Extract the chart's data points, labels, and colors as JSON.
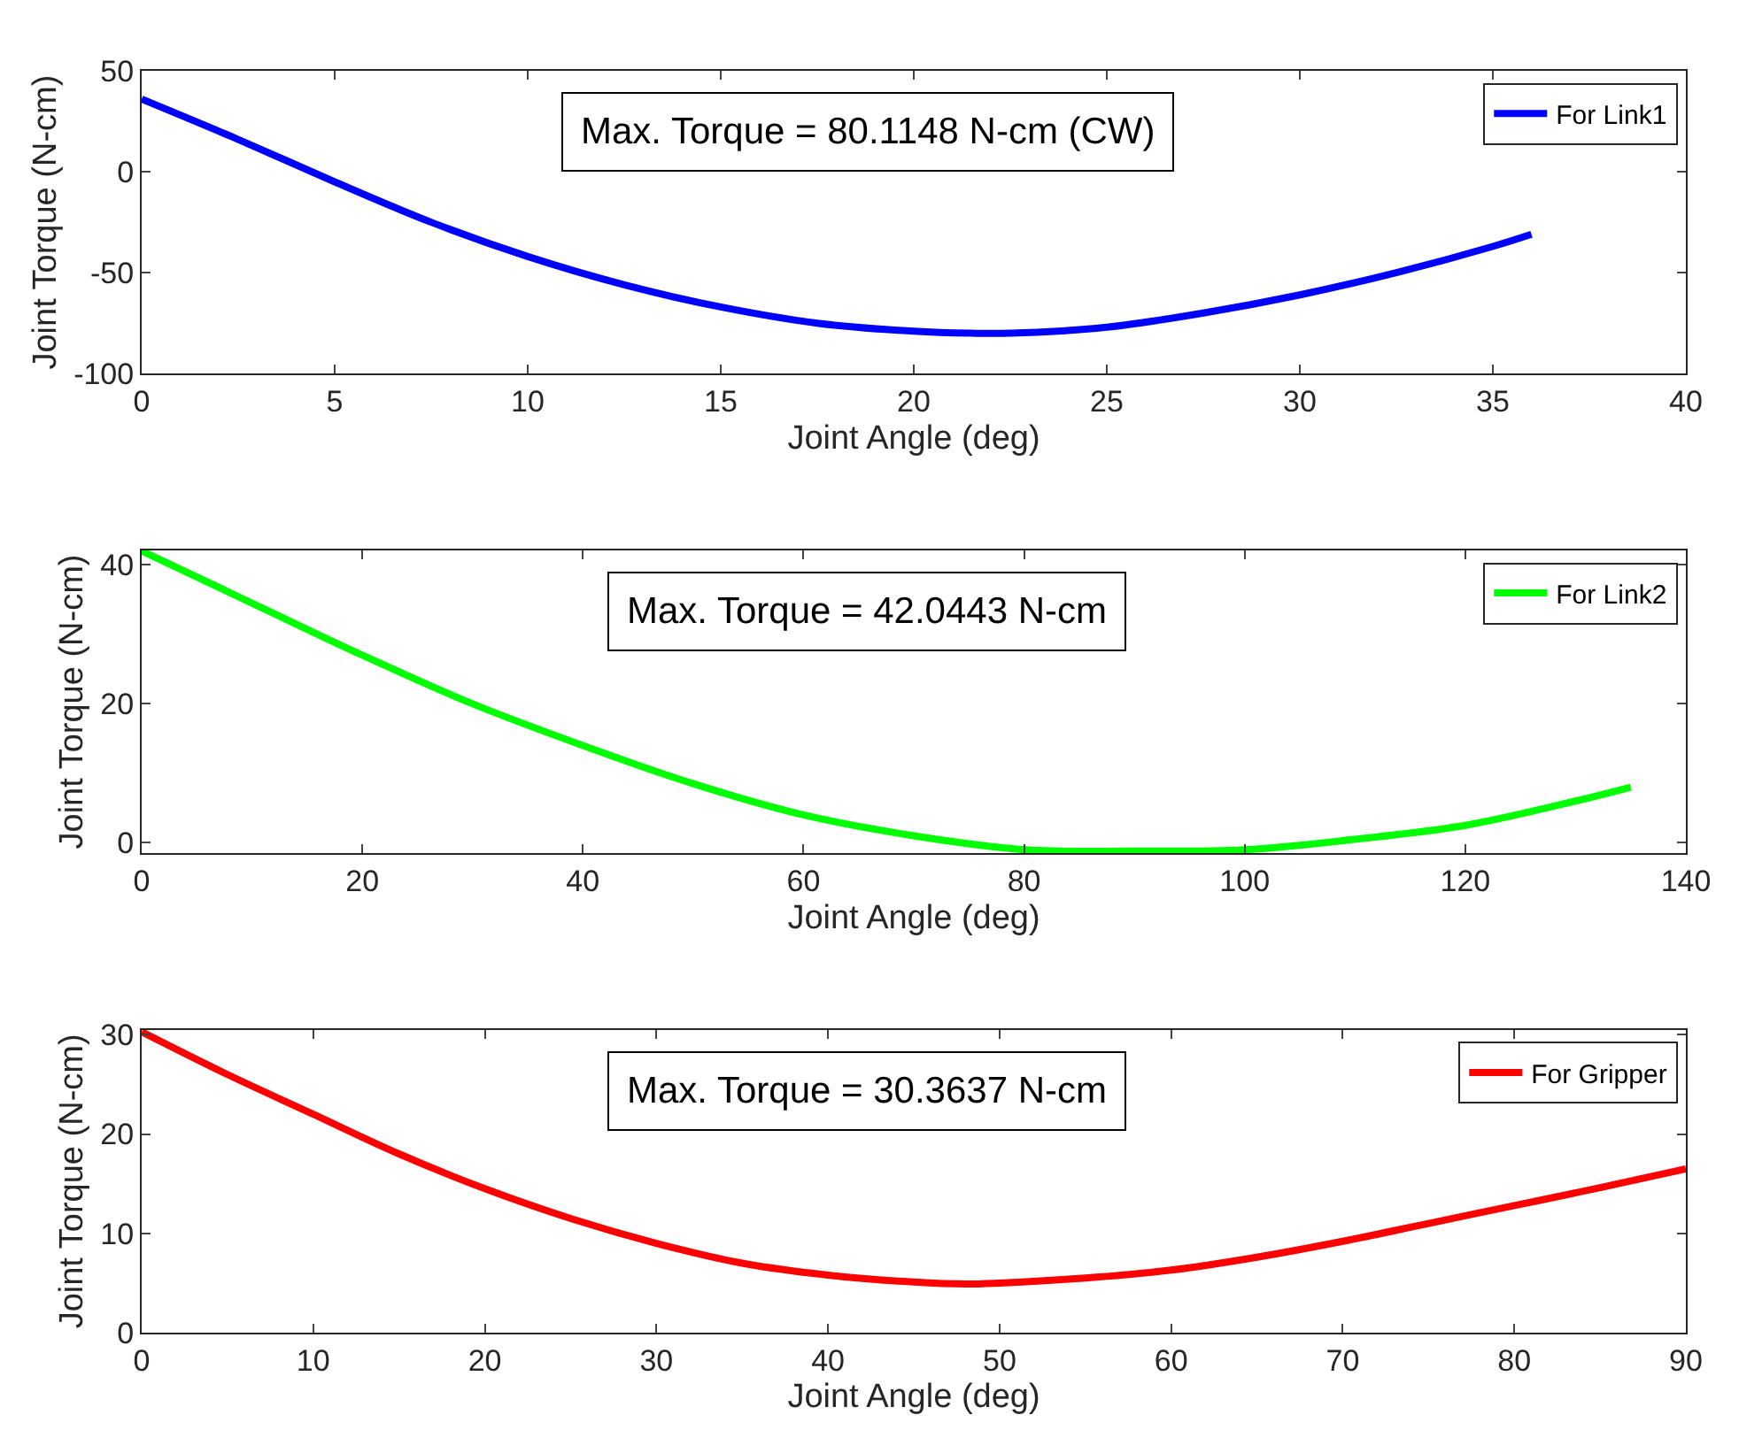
{
  "chart_data": [
    {
      "type": "line",
      "xlabel": "Joint Angle (deg)",
      "ylabel": "Joint Torque (N-cm)",
      "xlim": [
        0,
        40
      ],
      "xticks": [
        0,
        5,
        10,
        15,
        20,
        25,
        30,
        35,
        40
      ],
      "ylim": [
        -100,
        50
      ],
      "yticks": [
        -100,
        -50,
        0,
        50
      ],
      "legend": "top right",
      "marker": "none",
      "line_style": "solid",
      "annotations": [
        "Max. Torque = 80.1148 N-cm (CW)"
      ],
      "x": [
        0,
        2.5,
        5,
        7.5,
        10,
        12.5,
        15,
        17.5,
        20,
        21.5,
        22.5,
        25,
        27.5,
        30,
        32.5,
        35,
        36
      ],
      "series": [
        {
          "name": "For Link1",
          "color": "#0000ff",
          "values": [
            36,
            16,
            -5,
            -25,
            -42,
            -56,
            -67,
            -75,
            -79,
            -80,
            -80,
            -77,
            -70,
            -61,
            -50,
            -37,
            -31
          ]
        }
      ]
    },
    {
      "type": "line",
      "xlabel": "Joint Angle (deg)",
      "ylabel": "Joint Torque (N-cm)",
      "xlim": [
        0,
        140
      ],
      "xticks": [
        0,
        20,
        40,
        60,
        80,
        100,
        120,
        140
      ],
      "ylim": [
        -1.5,
        42.1
      ],
      "yticks": [
        0,
        20,
        40
      ],
      "legend": "top right",
      "marker": "none",
      "line_style": "solid",
      "annotations": [
        "Max. Torque = 42.0443 N-cm"
      ],
      "x": [
        0,
        10,
        20,
        30,
        40,
        50,
        60,
        70,
        80,
        90,
        100,
        110,
        120,
        130,
        135
      ],
      "series": [
        {
          "name": "For Link2",
          "color": "#00ff00",
          "values": [
            42,
            34.5,
            27,
            20,
            14,
            8.5,
            4,
            1,
            -1,
            -1.2,
            -1,
            0.5,
            2.5,
            6,
            8
          ]
        }
      ]
    },
    {
      "type": "line",
      "xlabel": "Joint Angle (deg)",
      "ylabel": "Joint Torque (N-cm)",
      "xlim": [
        0,
        90
      ],
      "xticks": [
        0,
        10,
        20,
        30,
        40,
        50,
        60,
        70,
        80,
        90
      ],
      "ylim": [
        0,
        30.5
      ],
      "yticks": [
        0,
        10,
        20,
        30
      ],
      "legend": "top right",
      "marker": "none",
      "line_style": "solid",
      "annotations": [
        "Max. Torque = 30.3637 N-cm"
      ],
      "x": [
        0,
        5,
        10,
        15,
        20,
        25,
        30,
        35,
        40,
        45,
        48,
        50,
        55,
        60,
        65,
        70,
        75,
        80,
        85,
        90
      ],
      "series": [
        {
          "name": "For Gripper",
          "color": "#ff0000",
          "values": [
            30.3,
            26,
            22,
            18,
            14.5,
            11.5,
            9,
            7,
            5.8,
            5.1,
            4.9,
            5,
            5.5,
            6.3,
            7.6,
            9.2,
            11,
            12.8,
            14.6,
            16.5
          ]
        }
      ]
    }
  ]
}
